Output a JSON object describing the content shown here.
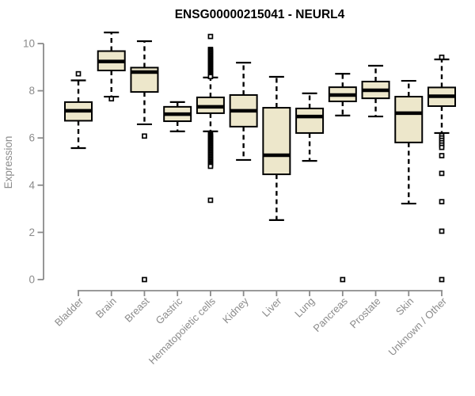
{
  "colors": {
    "box_fill": "#EDE7CB",
    "box_stroke": "#000000",
    "median_color": "#000000",
    "whisker_color": "#000000",
    "outlier_stroke": "#000000",
    "outlier_fill": "#ffffff",
    "axis_color": "#8b8b8b",
    "label_color": "#8b8b8b",
    "title_color": "#000000",
    "background": "#ffffff"
  },
  "chart_data": {
    "type": "boxplot",
    "title": "ENSG00000215041 - NEURL4",
    "xlabel": "",
    "ylabel": "Expression",
    "ylim": [
      0,
      10
    ],
    "yticks": [
      0,
      2,
      4,
      6,
      8,
      10
    ],
    "grid": false,
    "legend": "none",
    "categories": [
      "Bladder",
      "Brain",
      "Breast",
      "Gastric",
      "Hematopoietic cells",
      "Kidney",
      "Liver",
      "Lung",
      "Pancreas",
      "Prostate",
      "Skin",
      "Unknown / Other"
    ],
    "series": [
      {
        "name": "Bladder",
        "whislo": 5.57,
        "q1": 6.73,
        "med": 7.15,
        "q3": 7.52,
        "whishi": 8.44,
        "outliers": [
          8.72
        ]
      },
      {
        "name": "Brain",
        "whislo": 7.75,
        "q1": 8.86,
        "med": 9.24,
        "q3": 9.68,
        "whishi": 10.47,
        "outliers": [
          7.66
        ]
      },
      {
        "name": "Breast",
        "whislo": 6.58,
        "q1": 7.95,
        "med": 8.79,
        "q3": 8.98,
        "whishi": 10.1,
        "outliers": [
          6.08,
          0
        ]
      },
      {
        "name": "Gastric",
        "whislo": 6.28,
        "q1": 6.71,
        "med": 7.01,
        "q3": 7.32,
        "whishi": 7.52,
        "outliers": []
      },
      {
        "name": "Hematopoietic cells",
        "whislo": 6.28,
        "q1": 7.05,
        "med": 7.32,
        "q3": 7.72,
        "whishi": 8.56,
        "outliers": [
          10.3,
          9.75,
          9.7,
          9.65,
          9.6,
          9.55,
          9.5,
          9.45,
          9.4,
          9.35,
          9.3,
          9.25,
          9.2,
          9.15,
          9.1,
          9.05,
          9.0,
          8.95,
          8.9,
          8.85,
          8.8,
          8.75,
          8.7,
          8.65,
          8.6,
          6.15,
          6.1,
          6.05,
          6.0,
          5.95,
          5.9,
          5.85,
          5.8,
          5.75,
          5.7,
          5.65,
          5.6,
          5.55,
          5.5,
          5.45,
          5.4,
          5.35,
          5.3,
          5.25,
          5.2,
          5.15,
          5.1,
          5.05,
          5.0,
          4.95,
          4.9,
          4.85,
          4.8,
          3.36
        ]
      },
      {
        "name": "Kidney",
        "whislo": 5.07,
        "q1": 6.48,
        "med": 7.15,
        "q3": 7.82,
        "whishi": 9.19,
        "outliers": []
      },
      {
        "name": "Liver",
        "whislo": 2.52,
        "q1": 4.46,
        "med": 5.27,
        "q3": 7.28,
        "whishi": 8.59,
        "outliers": []
      },
      {
        "name": "Lung",
        "whislo": 5.03,
        "q1": 6.21,
        "med": 6.91,
        "q3": 7.25,
        "whishi": 7.89,
        "outliers": []
      },
      {
        "name": "Pancreas",
        "whislo": 6.95,
        "q1": 7.55,
        "med": 7.82,
        "q3": 8.15,
        "whishi": 8.72,
        "outliers": [
          0
        ]
      },
      {
        "name": "Prostate",
        "whislo": 6.91,
        "q1": 7.68,
        "med": 8.02,
        "q3": 8.39,
        "whishi": 9.06,
        "outliers": []
      },
      {
        "name": "Skin",
        "whislo": 3.22,
        "q1": 5.81,
        "med": 7.05,
        "q3": 7.75,
        "whishi": 8.42,
        "outliers": []
      },
      {
        "name": "Unknown / Other",
        "whislo": 6.21,
        "q1": 7.35,
        "med": 7.77,
        "q3": 8.14,
        "whishi": 9.33,
        "outliers": [
          9.42,
          6.1,
          6.0,
          5.9,
          5.8,
          5.7,
          5.6,
          5.25,
          4.5,
          3.3,
          2.05,
          0
        ]
      }
    ]
  }
}
